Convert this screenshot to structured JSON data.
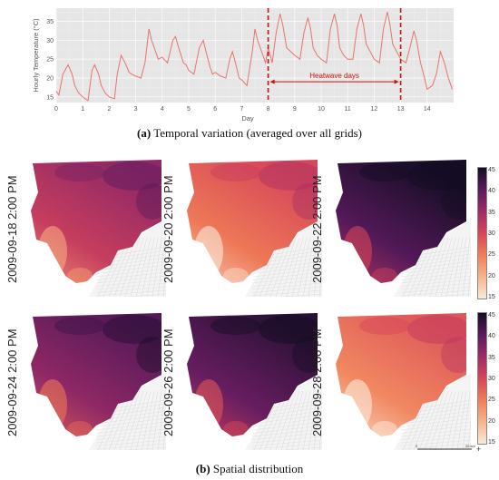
{
  "chart_data": [
    {
      "type": "line",
      "xlabel": "Day",
      "ylabel": "Hourly Temperature (°C)",
      "xlim": [
        0,
        15
      ],
      "ylim": [
        13.5,
        38.5
      ],
      "x_ticks": [
        0,
        1,
        2,
        3,
        4,
        5,
        6,
        7,
        8,
        9,
        10,
        11,
        12,
        13,
        14
      ],
      "y_ticks": [
        15,
        20,
        25,
        30,
        35
      ],
      "grid": true,
      "line_color": "#e8736c",
      "x": [
        0,
        0.1,
        0.25,
        0.45,
        0.6,
        0.7,
        0.85,
        1.0,
        1.2,
        1.35,
        1.45,
        1.6,
        1.7,
        1.85,
        2.0,
        2.2,
        2.3,
        2.45,
        2.6,
        2.75,
        2.85,
        3.0,
        3.2,
        3.35,
        3.5,
        3.6,
        3.75,
        3.85,
        4.0,
        4.2,
        4.4,
        4.5,
        4.6,
        4.8,
        4.9,
        5.0,
        5.2,
        5.4,
        5.55,
        5.65,
        5.8,
        5.9,
        6.0,
        6.2,
        6.4,
        6.55,
        6.65,
        6.8,
        6.9,
        7.0,
        7.2,
        7.4,
        7.5,
        7.6,
        7.8,
        7.9,
        8.0,
        8.15,
        8.3,
        8.45,
        8.55,
        8.7,
        8.85,
        9.0,
        9.2,
        9.35,
        9.5,
        9.6,
        9.7,
        9.85,
        10.0,
        10.2,
        10.35,
        10.5,
        10.6,
        10.7,
        10.85,
        11.0,
        11.2,
        11.35,
        11.5,
        11.6,
        11.7,
        11.85,
        12.0,
        12.2,
        12.35,
        12.5,
        12.6,
        12.7,
        12.85,
        13.0,
        13.2,
        13.35,
        13.5,
        13.6,
        13.75,
        13.9,
        14.0,
        14.2,
        14.35,
        14.5,
        14.65,
        14.8,
        14.95
      ],
      "y": [
        16.5,
        15.5,
        21,
        23.5,
        21,
        18,
        16,
        15,
        14,
        22,
        23.5,
        21,
        18,
        16,
        15,
        14.5,
        21,
        26,
        24,
        21.5,
        21,
        20.5,
        20,
        24,
        33,
        30,
        27,
        25,
        25.5,
        24,
        30,
        31,
        28.5,
        24,
        23.5,
        22,
        21,
        28,
        30,
        27,
        23,
        21,
        21.5,
        20.5,
        20,
        25,
        27,
        23,
        20,
        19.5,
        18,
        27,
        33,
        30,
        26,
        24,
        28,
        24,
        32,
        37,
        34,
        28,
        27,
        26,
        25,
        32,
        36,
        33,
        28,
        26,
        25,
        24,
        33,
        37,
        34,
        28,
        26,
        25,
        25,
        33,
        37,
        34,
        29,
        27,
        25,
        24,
        33,
        37.5,
        34,
        29,
        27,
        25,
        24,
        28,
        32.5,
        30,
        24,
        20,
        17,
        18,
        21,
        27,
        24,
        20,
        17
      ],
      "annotations": [
        {
          "type": "vline",
          "x": 8,
          "color": "#cc1111"
        },
        {
          "type": "vline",
          "x": 13,
          "color": "#cc1111"
        },
        {
          "type": "span-arrow",
          "x_start": 8,
          "x_end": 13,
          "y": 19,
          "text": "Heatwave days",
          "color": "#cc1111"
        }
      ]
    },
    {
      "type": "heatmap",
      "panels": [
        {
          "label": "2009-09-18 2:00 PM",
          "intensity": 0.55
        },
        {
          "label": "2009-09-20 2:00 PM",
          "intensity": 0.35
        },
        {
          "label": "2009-09-22 2:00 PM",
          "intensity": 0.85
        },
        {
          "label": "2009-09-24 2:00 PM",
          "intensity": 0.7
        },
        {
          "label": "2009-09-26 2:00 PM",
          "intensity": 0.8
        },
        {
          "label": "2009-09-28 2:00 PM",
          "intensity": 0.3
        }
      ],
      "colorbar": {
        "ticks": [
          15,
          20,
          25,
          30,
          35,
          40,
          45
        ],
        "vmin": 15,
        "vmax": 45,
        "colors": [
          "#fbe9d8",
          "#f7b58b",
          "#f07d56",
          "#d6455a",
          "#9c2b67",
          "#5a1a5e",
          "#140d23"
        ]
      }
    }
  ],
  "captions": {
    "a_prefix": "(a)",
    "a_text": " Temporal variation (averaged over all grids)",
    "b_prefix": "(b)",
    "b_text": " Spatial distribution"
  },
  "scalebar": {
    "left": "0",
    "right": "20 km"
  }
}
